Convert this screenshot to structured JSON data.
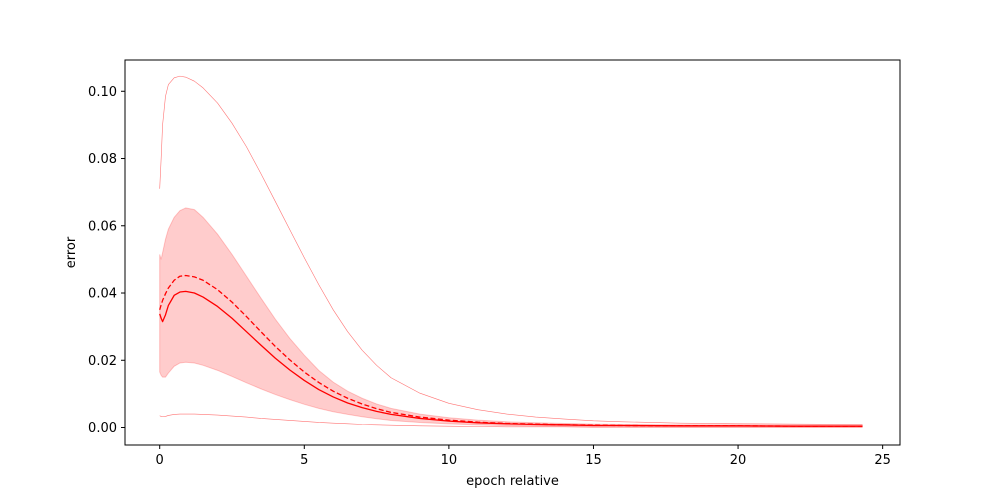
{
  "chart_data": {
    "type": "line",
    "title": "",
    "xlabel": "epoch relative",
    "ylabel": "error",
    "xlim": [
      -1.2,
      25.6
    ],
    "ylim": [
      -0.0052,
      0.1093
    ],
    "grid": false,
    "x_ticks": [
      {
        "value": 0,
        "label": "0"
      },
      {
        "value": 5,
        "label": "5"
      },
      {
        "value": 10,
        "label": "10"
      },
      {
        "value": 15,
        "label": "15"
      },
      {
        "value": 20,
        "label": "20"
      },
      {
        "value": 25,
        "label": "25"
      }
    ],
    "y_ticks": [
      {
        "value": 0.0,
        "label": "0.00"
      },
      {
        "value": 0.02,
        "label": "0.02"
      },
      {
        "value": 0.04,
        "label": "0.04"
      },
      {
        "value": 0.06,
        "label": "0.06"
      },
      {
        "value": 0.08,
        "label": "0.08"
      },
      {
        "value": 0.1,
        "label": "0.10"
      }
    ],
    "x": [
      0,
      0.05,
      0.1,
      0.2,
      0.3,
      0.5,
      0.7,
      0.9,
      1.2,
      1.5,
      2,
      2.5,
      3,
      3.5,
      4,
      4.5,
      5,
      5.5,
      6,
      6.5,
      7,
      7.5,
      8,
      9,
      10,
      11,
      12,
      13,
      14,
      15,
      16,
      18,
      20,
      22,
      24.3
    ],
    "series": [
      {
        "role": "band",
        "color": "#ff0000",
        "fill_opacity": 0.2,
        "upper": [
          0.0515,
          0.05,
          0.052,
          0.056,
          0.059,
          0.0625,
          0.0645,
          0.0653,
          0.0648,
          0.0625,
          0.0575,
          0.0515,
          0.045,
          0.0385,
          0.0322,
          0.0265,
          0.0215,
          0.017,
          0.0135,
          0.0108,
          0.0087,
          0.007,
          0.0057,
          0.004,
          0.0029,
          0.0022,
          0.0017,
          0.0014,
          0.0012,
          0.001,
          0.0009,
          0.0008,
          0.0008,
          0.0007,
          0.0007
        ],
        "lower": [
          0.0165,
          0.0155,
          0.015,
          0.015,
          0.0162,
          0.0182,
          0.0192,
          0.0194,
          0.0192,
          0.0185,
          0.017,
          0.0152,
          0.0133,
          0.0115,
          0.0098,
          0.0083,
          0.0069,
          0.0057,
          0.0047,
          0.0039,
          0.0032,
          0.0026,
          0.0021,
          0.0015,
          0.0011,
          0.0008,
          0.0006,
          0.0005,
          0.0004,
          0.0003,
          0.0003,
          0.0002,
          0.0002,
          0.0002,
          0.0002
        ]
      },
      {
        "role": "mean",
        "style": "solid",
        "color": "#ff0000",
        "values": [
          0.0338,
          0.0325,
          0.0315,
          0.0335,
          0.0363,
          0.0393,
          0.0403,
          0.0405,
          0.04,
          0.0388,
          0.036,
          0.0325,
          0.0285,
          0.0245,
          0.0206,
          0.0171,
          0.014,
          0.0113,
          0.0091,
          0.0073,
          0.0059,
          0.0048,
          0.0039,
          0.0027,
          0.0019,
          0.0014,
          0.0011,
          0.0009,
          0.0008,
          0.0006,
          0.0006,
          0.0005,
          0.0005,
          0.0004,
          0.0004
        ]
      },
      {
        "role": "median",
        "style": "dashed",
        "color": "#ff0000",
        "values": [
          0.035,
          0.0365,
          0.0378,
          0.0398,
          0.0415,
          0.0438,
          0.045,
          0.0452,
          0.0448,
          0.0438,
          0.041,
          0.0373,
          0.033,
          0.0285,
          0.0241,
          0.0201,
          0.0165,
          0.0134,
          0.0108,
          0.0087,
          0.007,
          0.0056,
          0.0045,
          0.0031,
          0.0022,
          0.0016,
          0.0012,
          0.001,
          0.0008,
          0.0007,
          0.0006,
          0.0005,
          0.0005,
          0.0004,
          0.0004
        ]
      },
      {
        "role": "max",
        "style": "thin",
        "color": "#ff0000",
        "values": [
          0.071,
          0.08,
          0.09,
          0.0985,
          0.102,
          0.104,
          0.1045,
          0.1042,
          0.103,
          0.101,
          0.0965,
          0.0905,
          0.0835,
          0.0755,
          0.0672,
          0.0588,
          0.0505,
          0.0425,
          0.035,
          0.0285,
          0.023,
          0.0185,
          0.0148,
          0.0102,
          0.0072,
          0.0053,
          0.004,
          0.0031,
          0.0025,
          0.002,
          0.0017,
          0.0013,
          0.0011,
          0.001,
          0.0009
        ]
      },
      {
        "role": "min",
        "style": "thin",
        "color": "#ff0000",
        "values": [
          0.0035,
          0.0033,
          0.0032,
          0.0033,
          0.0036,
          0.0039,
          0.004,
          0.004,
          0.004,
          0.0039,
          0.0037,
          0.0034,
          0.0031,
          0.0027,
          0.0024,
          0.0021,
          0.0018,
          0.0015,
          0.0013,
          0.0011,
          0.0009,
          0.0008,
          0.0007,
          0.0005,
          0.0004,
          0.0003,
          0.0002,
          0.0002,
          0.0002,
          0.0001,
          0.0001,
          0.0001,
          0.0001,
          0.0001,
          0.0001
        ]
      }
    ]
  }
}
